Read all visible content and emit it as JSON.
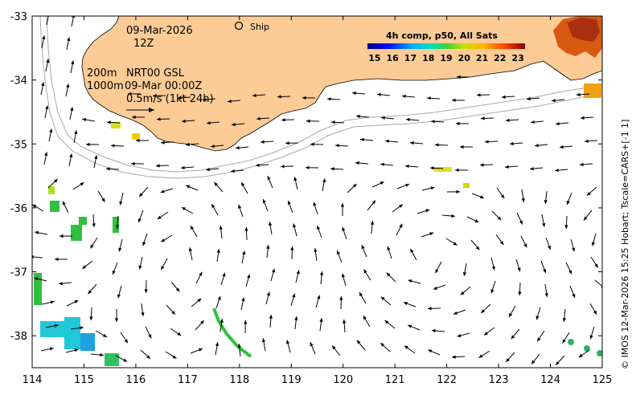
{
  "header": {
    "date": "09-Mar-2026",
    "hour": "12Z",
    "ship_label": "Ship"
  },
  "annotations": {
    "depth_line": "200m",
    "depth_line2": "1000m",
    "product": "NRT00 GSL",
    "product_time": "09-Mar 00:00Z",
    "scale_label": "0.5m/s (1kt 24h)"
  },
  "colorbar": {
    "title": "4h comp, p50, All Sats",
    "ticks": [
      "15",
      "16",
      "17",
      "18",
      "19",
      "20",
      "21",
      "22",
      "23"
    ],
    "min": 14.6,
    "max": 23.4
  },
  "axes": {
    "x_ticks": [
      "114",
      "115",
      "116",
      "117",
      "118",
      "119",
      "120",
      "121",
      "122",
      "123",
      "124",
      "125"
    ],
    "y_ticks": [
      "-33",
      "-34",
      "-35",
      "-36",
      "-37",
      "-38"
    ],
    "lon_range": [
      114,
      125
    ],
    "lat_range": [
      -38.5,
      -33
    ]
  },
  "credit": "© IMOS 12-Mar-2026 15:25 Hobart; Tscale=CARS+[-1 1]",
  "colors": {
    "land": "#fccb96",
    "ocean": "#ffffff",
    "contour": "#a8a8a8"
  }
}
